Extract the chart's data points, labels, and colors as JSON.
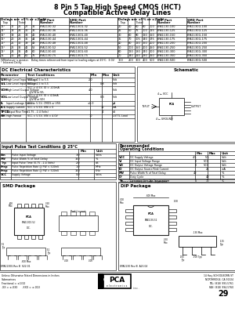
{
  "title_line1": "8 Pin 5 Tap High Speed CMOS (HCT)",
  "title_line2": "Compatible Active Delay Lines",
  "bg_color": "#ffffff",
  "table1_data": [
    [
      "12°",
      "17",
      "22",
      "27",
      "32",
      "EPA1130-32",
      "EPA1130G-32"
    ],
    [
      "12°",
      "18",
      "24",
      "30",
      "36",
      "EPA1130-36",
      "EPA1130G-36"
    ],
    [
      "12°",
      "19",
      "26",
      "33",
      "40",
      "EPA1130-40",
      "EPA1130G-40"
    ],
    [
      "12°",
      "20",
      "28",
      "36",
      "44",
      "EPA1130-44",
      "EPA1130G-44"
    ],
    [
      "12°",
      "21",
      "30",
      "39",
      "48",
      "EPA1130-48",
      "EPA1130G-48"
    ],
    [
      "12°",
      "22",
      "32",
      "42",
      "52",
      "EPA1130-52",
      "EPA1130G-52"
    ],
    [
      "12°",
      "24",
      "36",
      "48",
      "60",
      "EPA1130-60",
      "EPA1130G-60"
    ],
    [
      "15",
      "30",
      "45",
      "60",
      "75",
      "EPA1130-75",
      "EPA1130G-75"
    ]
  ],
  "table2_data": [
    [
      "20",
      "40",
      "60",
      "80",
      "100",
      "EPA1130-100",
      "EPA1130G-100"
    ],
    [
      "25",
      "50",
      "75",
      "100",
      "125",
      "EPA1130-125",
      "EPA1130G-125"
    ],
    [
      "30",
      "60",
      "90",
      "120",
      "150",
      "EPA1130-150",
      "EPA1130G-150"
    ],
    [
      "35",
      "70",
      "105",
      "140",
      "175",
      "EPA1130-175",
      "EPA1130G-175"
    ],
    [
      "40",
      "80",
      "120",
      "160",
      "200",
      "EPA1130-200",
      "EPA1130G-200"
    ],
    [
      "50",
      "100",
      "150",
      "200",
      "250",
      "EPA1130-250",
      "EPA1130G-250"
    ],
    [
      "60",
      "120",
      "180",
      "240",
      "300",
      "EPA1130-300",
      "EPA1130G-300"
    ],
    [
      "70",
      "140",
      "210",
      "280",
      "350",
      "EPA1130-350",
      "EPA1130G-350"
    ],
    [
      "100",
      "200",
      "300",
      "400",
      "500",
      "EPA1130-500",
      "EPA1130G-500"
    ]
  ],
  "note1": "†Whichever is greater.   Delay times referenced from input to leading edges at 25°C,  3.0V.",
  "note2": "° Inherent Delay",
  "dc_data": [
    [
      "VIH",
      "High Level Input Voltage",
      "VCC = 4.5 to 5.5",
      "2.0",
      "",
      "Volt"
    ],
    [
      "VIL",
      "Low Level Input Voltage",
      "VCC = 4.5 to 5.5",
      "",
      "0.8",
      "Volt"
    ],
    [
      "VOH",
      "High Level Output Voltage",
      "VCC = 4.5V, IO = -4.0mA\n  @VIN or VIL",
      "4.0",
      "",
      "Volt"
    ],
    [
      "VOL",
      "Low Level Output Voltage",
      "VCC = 4.5V, IO = 4.0mA\n  @VIN or VIH",
      "",
      "0.3",
      "Volt"
    ],
    [
      "IL",
      "Input Leakage Current",
      "VCC = 5.5V, CMOS or VSS",
      "±1.0",
      "",
      "μA"
    ],
    [
      "ICC",
      "Supply Current",
      "VCC = 5.5V, VIN = 0",
      "",
      "15",
      "mA"
    ],
    [
      "TPCD",
      "Output Rise Time",
      "(1.75 - 2.4 Volts)",
      "",
      "4",
      "nS"
    ],
    [
      "NH",
      "High Fanout",
      "VCC = 5.5V, VIN = 4.0V",
      "10",
      "",
      "LSTTL Load"
    ]
  ],
  "pulse_data": [
    [
      "Ein",
      "Pulse Input Voltage",
      "3.0",
      "Volts"
    ],
    [
      "PW",
      "Pulse Width % of Total Delay",
      "150",
      "%"
    ],
    [
      "Trp",
      "Input Pulse Time (0.75 - 2.4 Volts)",
      "2.0",
      "nS"
    ],
    [
      "Frep",
      "Pulse Repetition Rate @ PW < 500nS",
      "1.0",
      "MHz"
    ],
    [
      "Frep",
      "Pulse Repetition Rate @ PW > 500nS",
      "150",
      "KHz"
    ],
    [
      "VCC",
      "Supply Voltage",
      "5.0",
      "Volts"
    ]
  ],
  "rec_data": [
    [
      "VCC",
      "DC Supply Voltage",
      "4.5",
      "5.5",
      "Volt"
    ],
    [
      "VI",
      "DC Input Voltage Range",
      "0",
      "VCC",
      "Volt"
    ],
    [
      "VO",
      "DC Output Voltage Range",
      "0",
      "VCC",
      "Volt"
    ],
    [
      "IO",
      "DC Output Source/Sink Current",
      "",
      "25",
      "mA"
    ],
    [
      "PW",
      "Pulse Width % of Total Delay",
      "40",
      "",
      "%"
    ],
    [
      "D°",
      "Duty Cycle",
      "",
      "40",
      "%"
    ],
    [
      "Ta",
      "Operating Free Air Temperature",
      "0",
      "70",
      "°C"
    ]
  ],
  "rec_note": "*These test values are order dependent.",
  "footer_left1": "Unless Otherwise Noted Dimensions in Inches",
  "footer_left2": "Submarines",
  "footer_left3": "Fractional = ±1/32",
  "footer_left4": ".XX = ±.030      .XXX = ±.010",
  "footer_page": "29",
  "address1": "14 Hwy SCHOOLBORN ST",
  "address2": "NORTHRIDGE, CA 91324",
  "address3": "TEL: (818) 993-5761",
  "address4": "FAX: (818) 994-5760"
}
